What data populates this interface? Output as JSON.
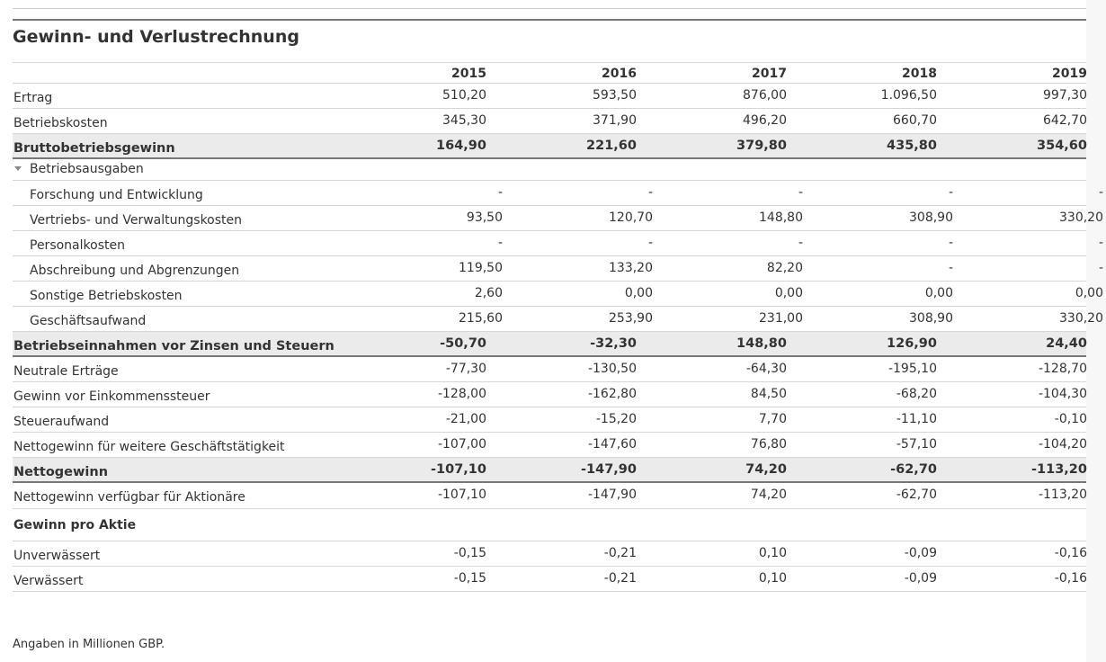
{
  "title": "Gewinn- und Verlustrechnung",
  "years": [
    "2015",
    "2016",
    "2017",
    "2018",
    "2019"
  ],
  "rows": [
    {
      "label": "Ertrag",
      "values": [
        "510,20",
        "593,50",
        "876,00",
        "1.096,50",
        "997,30"
      ]
    },
    {
      "label": "Betriebskosten",
      "values": [
        "345,30",
        "371,90",
        "496,20",
        "660,70",
        "642,70"
      ]
    },
    {
      "label": "Bruttobetriebsgewinn",
      "values": [
        "164,90",
        "221,60",
        "379,80",
        "435,80",
        "354,60"
      ]
    },
    {
      "label": "Betriebsausgaben",
      "values": []
    },
    {
      "label": "Forschung und Entwicklung",
      "values": [
        "-",
        "-",
        "-",
        "-",
        "-"
      ]
    },
    {
      "label": "Vertriebs- und Verwaltungskosten",
      "values": [
        "93,50",
        "120,70",
        "148,80",
        "308,90",
        "330,20"
      ]
    },
    {
      "label": "Personalkosten",
      "values": [
        "-",
        "-",
        "-",
        "-",
        "-"
      ]
    },
    {
      "label": "Abschreibung und Abgrenzungen",
      "values": [
        "119,50",
        "133,20",
        "82,20",
        "-",
        "-"
      ]
    },
    {
      "label": "Sonstige Betriebskosten",
      "values": [
        "2,60",
        "0,00",
        "0,00",
        "0,00",
        "0,00"
      ]
    },
    {
      "label": "Geschäftsaufwand",
      "values": [
        "215,60",
        "253,90",
        "231,00",
        "308,90",
        "330,20"
      ]
    },
    {
      "label": "Betriebseinnahmen vor Zinsen und Steuern",
      "values": [
        "-50,70",
        "-32,30",
        "148,80",
        "126,90",
        "24,40"
      ]
    },
    {
      "label": "Neutrale Erträge",
      "values": [
        "-77,30",
        "-130,50",
        "-64,30",
        "-195,10",
        "-128,70"
      ]
    },
    {
      "label": "Gewinn vor Einkommenssteuer",
      "values": [
        "-128,00",
        "-162,80",
        "84,50",
        "-68,20",
        "-104,30"
      ]
    },
    {
      "label": "Steueraufwand",
      "values": [
        "-21,00",
        "-15,20",
        "7,70",
        "-11,10",
        "-0,10"
      ]
    },
    {
      "label": "Nettogewinn für weitere Geschäftstätigkeit",
      "values": [
        "-107,00",
        "-147,60",
        "76,80",
        "-57,10",
        "-104,20"
      ]
    },
    {
      "label": "Nettogewinn",
      "values": [
        "-107,10",
        "-147,90",
        "74,20",
        "-62,70",
        "-113,20"
      ]
    },
    {
      "label": "Nettogewinn verfügbar für Aktionäre",
      "values": [
        "-107,10",
        "-147,90",
        "74,20",
        "-62,70",
        "-113,20"
      ]
    }
  ],
  "eps": {
    "title": "Gewinn pro Aktie",
    "rows": [
      {
        "label": "Unverwässert",
        "values": [
          "-0,15",
          "-0,21",
          "0,10",
          "-0,09",
          "-0,16"
        ]
      },
      {
        "label": "Verwässert",
        "values": [
          "-0,15",
          "-0,21",
          "0,10",
          "-0,09",
          "-0,16"
        ]
      }
    ]
  },
  "footnote": "Angaben in Millionen GBP."
}
